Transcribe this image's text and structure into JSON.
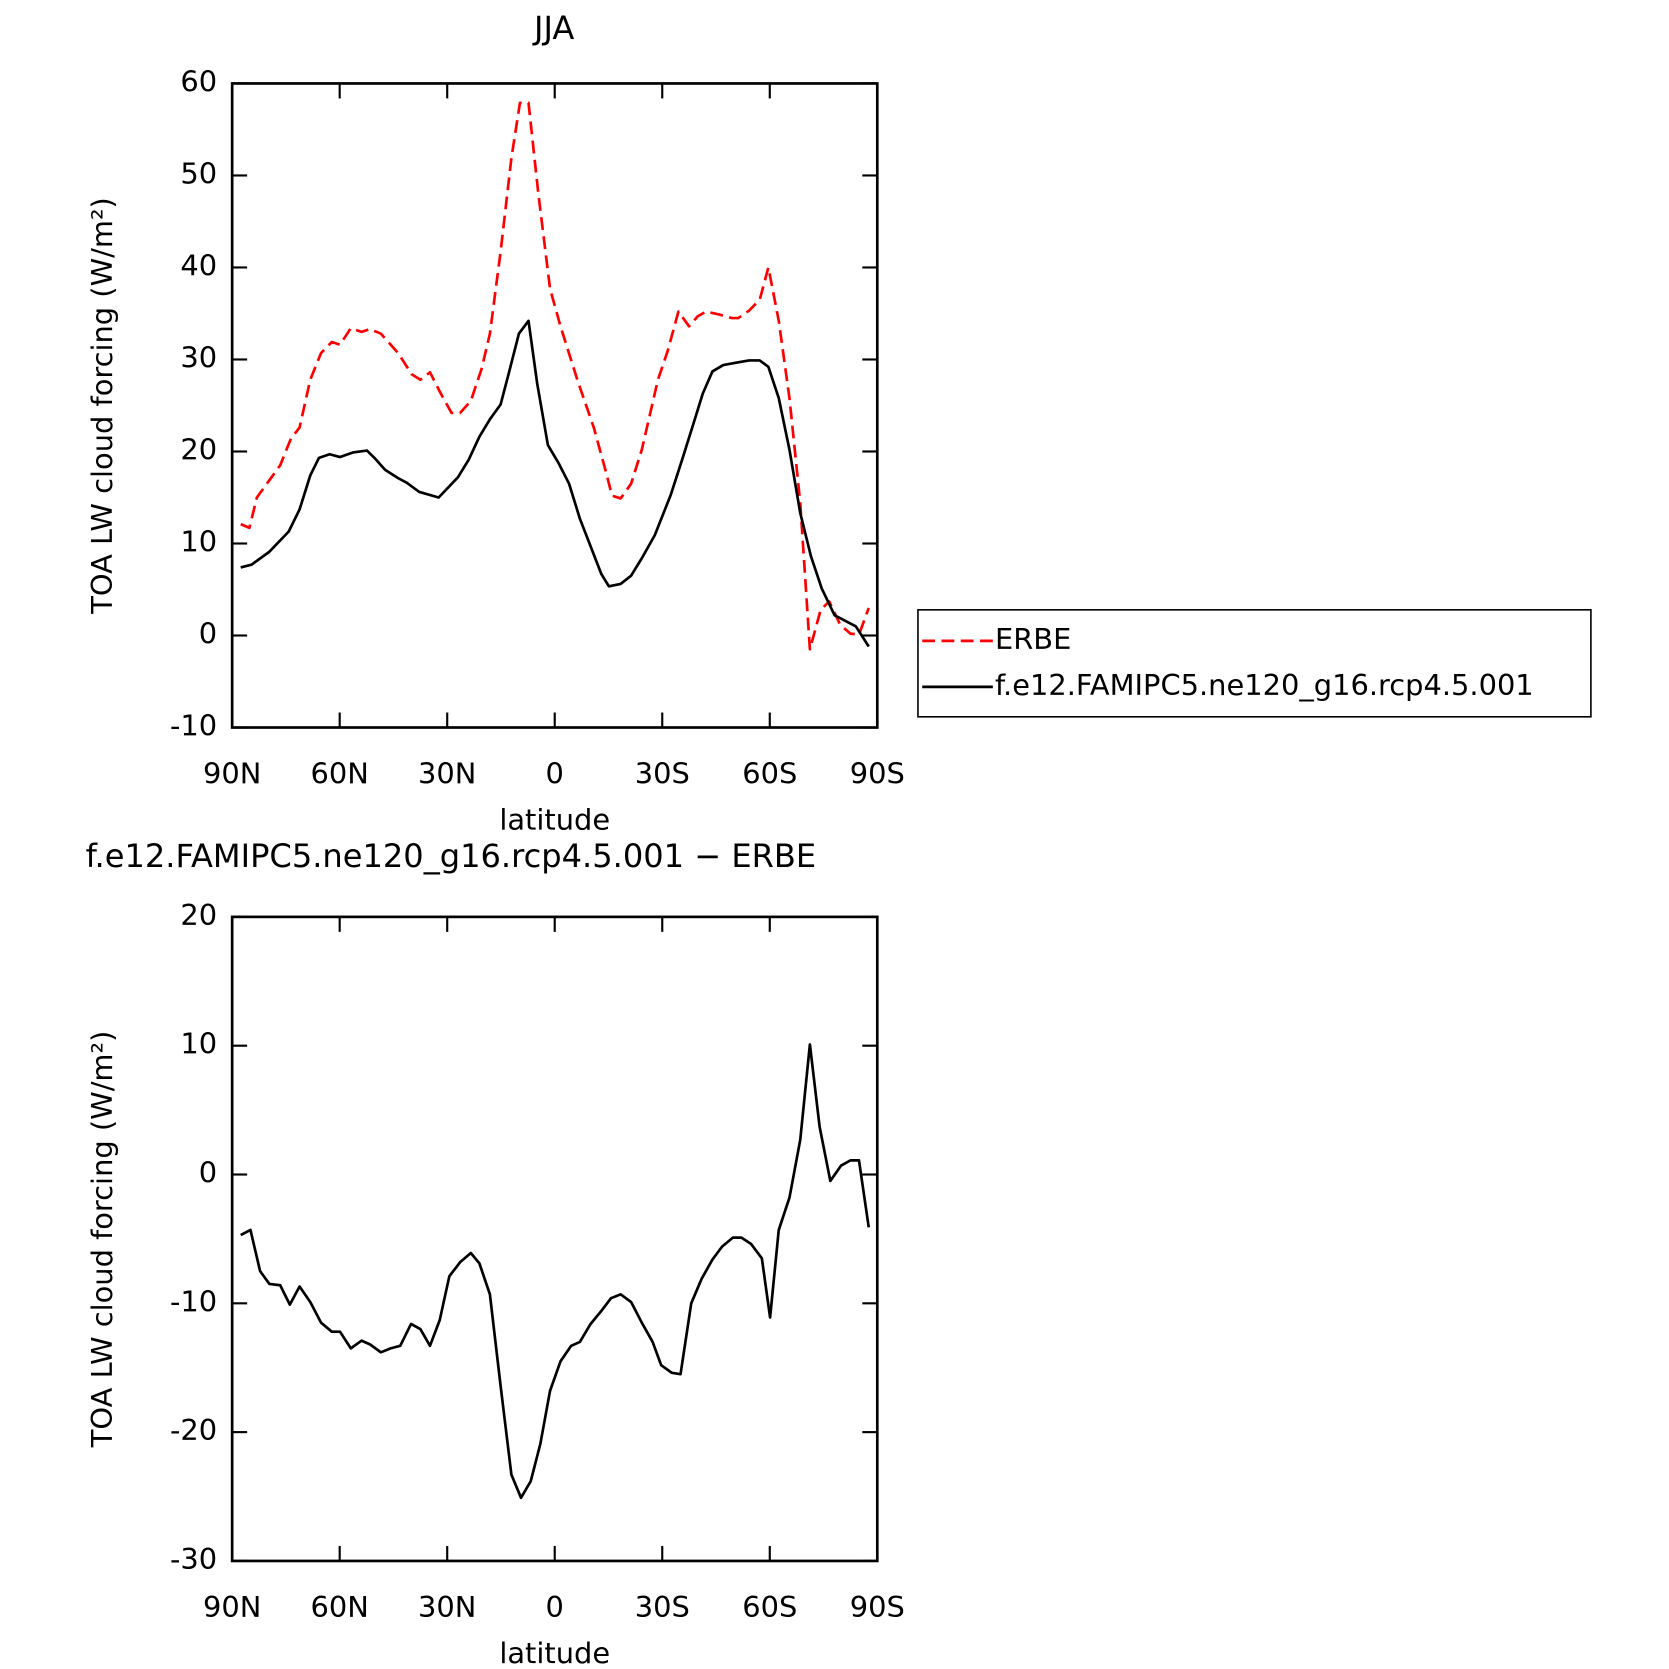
{
  "chart_data": [
    {
      "type": "line",
      "title": "JJA",
      "xlabel": "latitude",
      "ylabel": "TOA LW cloud forcing (W/m²)",
      "xlim": [
        90,
        -90
      ],
      "xticks": [
        {
          "value": 90,
          "label": "90N"
        },
        {
          "value": 60,
          "label": "60N"
        },
        {
          "value": 30,
          "label": "30N"
        },
        0,
        {
          "value": -30,
          "label": "30S"
        },
        {
          "value": -60,
          "label": "60S"
        },
        {
          "value": -90,
          "label": "90S"
        }
      ],
      "ylim": [
        -10,
        60
      ],
      "yticks": [
        -10,
        0,
        10,
        20,
        30,
        40,
        50,
        60
      ],
      "legend": "right",
      "series": [
        {
          "name": "ERBE",
          "color": "#ff0000",
          "dashed": true,
          "x": [
            87.6,
            85.2,
            83.1,
            76.6,
            73.6,
            71.2,
            68.2,
            65.2,
            62.2,
            59.9,
            56.9,
            53.9,
            51.5,
            48.5,
            43.7,
            39.9,
            37.5,
            34.8,
            31.8,
            28.8,
            26.4,
            23.4,
            20.4,
            18.1,
            15.1,
            12.1,
            9.7,
            7.3,
            4.6,
            1.3,
            -1.6,
            -6.4,
            -10.9,
            -14.2,
            -16.0,
            -18.4,
            -21.3,
            -24.3,
            -28.8,
            -31.5,
            -34.5,
            -37.5,
            -39.9,
            -42.2,
            -45.8,
            -49.4,
            -51.2,
            -54.2,
            -57.2,
            -59.6,
            -62.5,
            -65.5,
            -68.5,
            -71.2,
            -74.2,
            -76.6,
            -79.6,
            -82.5,
            -84.9,
            -87.6
          ],
          "values": [
            12.1,
            11.7,
            15.0,
            18.5,
            21.4,
            22.6,
            27.8,
            30.7,
            31.9,
            31.6,
            33.4,
            33.0,
            33.3,
            32.8,
            30.7,
            28.4,
            27.8,
            28.6,
            26.3,
            24.2,
            24.2,
            25.5,
            29.0,
            32.8,
            41.7,
            51.9,
            57.9,
            57.9,
            48.1,
            37.7,
            33.6,
            27.7,
            22.6,
            17.9,
            15.2,
            14.9,
            16.5,
            20.2,
            27.8,
            30.9,
            35.2,
            33.6,
            34.7,
            35.2,
            34.9,
            34.5,
            34.5,
            35.3,
            36.5,
            40.0,
            34.2,
            25.8,
            14.4,
            -1.5,
            2.8,
            3.7,
            1.2,
            0.2,
            0.1,
            3.0
          ]
        },
        {
          "name": "f.e12.FAMIPC5.ne120_g16.rcp4.5.001",
          "color": "#000000",
          "dashed": false,
          "x": [
            87.6,
            84.6,
            79.6,
            74.2,
            71.2,
            68.2,
            65.8,
            62.8,
            59.9,
            56.3,
            52.4,
            50.3,
            47.3,
            43.7,
            41.3,
            37.8,
            32.4,
            27.0,
            24.0,
            21.0,
            18.1,
            15.1,
            12.7,
            10.0,
            7.3,
            4.9,
            1.9,
            -1.0,
            -4.0,
            -7.0,
            -10.0,
            -13.0,
            -15.1,
            -18.4,
            -21.3,
            -24.3,
            -27.9,
            -32.4,
            -35.7,
            -38.7,
            -41.3,
            -44.0,
            -47.0,
            -51.2,
            -54.2,
            -57.2,
            -59.6,
            -62.5,
            -65.5,
            -68.5,
            -71.5,
            -74.5,
            -78.1,
            -84.0,
            -87.6
          ],
          "values": [
            7.4,
            7.7,
            9.1,
            11.3,
            13.7,
            17.4,
            19.3,
            19.7,
            19.4,
            19.9,
            20.1,
            19.3,
            18.0,
            17.1,
            16.6,
            15.6,
            15.0,
            17.2,
            19.1,
            21.6,
            23.5,
            25.1,
            28.7,
            32.8,
            34.2,
            27.4,
            20.7,
            18.8,
            16.5,
            12.7,
            9.7,
            6.7,
            5.35,
            5.6,
            6.5,
            8.4,
            10.9,
            15.3,
            19.3,
            23.0,
            26.3,
            28.7,
            29.4,
            29.7,
            29.9,
            29.9,
            29.2,
            25.8,
            20.2,
            13.3,
            8.6,
            5.1,
            2.2,
            1.0,
            -1.2
          ]
        }
      ]
    },
    {
      "type": "line",
      "title": "f.e12.FAMIPC5.ne120_g16.rcp4.5.001 − ERBE",
      "xlabel": "latitude",
      "ylabel": "TOA LW cloud forcing (W/m²)",
      "xlim": [
        90,
        -90
      ],
      "xticks": [
        {
          "value": 90,
          "label": "90N"
        },
        {
          "value": 60,
          "label": "60N"
        },
        {
          "value": 30,
          "label": "30N"
        },
        0,
        {
          "value": -30,
          "label": "30S"
        },
        {
          "value": -60,
          "label": "60S"
        },
        {
          "value": -90,
          "label": "90S"
        }
      ],
      "ylim": [
        -30,
        20
      ],
      "yticks": [
        -30,
        -20,
        -10,
        0,
        10,
        20
      ],
      "color": "#000000",
      "x": [
        87.6,
        84.9,
        82.2,
        79.6,
        76.6,
        73.9,
        71.2,
        68.2,
        65.2,
        62.2,
        59.9,
        56.9,
        53.9,
        51.5,
        48.5,
        45.8,
        43.1,
        40.1,
        37.5,
        34.8,
        32.1,
        29.4,
        26.4,
        23.4,
        21.0,
        18.1,
        15.1,
        12.1,
        9.4,
        6.7,
        4.0,
        1.3,
        -1.6,
        -4.6,
        -7.0,
        -10.0,
        -13.0,
        -15.7,
        -18.4,
        -21.3,
        -24.3,
        -27.3,
        -29.7,
        -32.7,
        -35.1,
        -38.1,
        -41.0,
        -44.0,
        -46.7,
        -49.7,
        -52.1,
        -54.8,
        -57.8,
        -60.1,
        -62.5,
        -65.5,
        -68.5,
        -71.2,
        -73.9,
        -76.9,
        -79.9,
        -82.5,
        -84.9,
        -87.6
      ],
      "values": [
        -4.7,
        -4.3,
        -7.5,
        -8.5,
        -8.6,
        -10.1,
        -8.7,
        -9.9,
        -11.5,
        -12.2,
        -12.2,
        -13.5,
        -12.9,
        -13.2,
        -13.8,
        -13.5,
        -13.3,
        -11.6,
        -12.0,
        -13.3,
        -11.3,
        -7.9,
        -6.8,
        -6.1,
        -6.9,
        -9.3,
        -16.4,
        -23.3,
        -25.1,
        -23.8,
        -20.9,
        -16.8,
        -14.5,
        -13.3,
        -13.0,
        -11.6,
        -10.6,
        -9.6,
        -9.3,
        -9.9,
        -11.5,
        -13.0,
        -14.8,
        -15.4,
        -15.5,
        -10.0,
        -8.1,
        -6.6,
        -5.6,
        -4.9,
        -4.9,
        -5.4,
        -6.5,
        -11.1,
        -4.3,
        -1.8,
        2.7,
        10.1,
        3.7,
        -0.5,
        0.7,
        1.1,
        1.1,
        -4.1
      ]
    }
  ]
}
